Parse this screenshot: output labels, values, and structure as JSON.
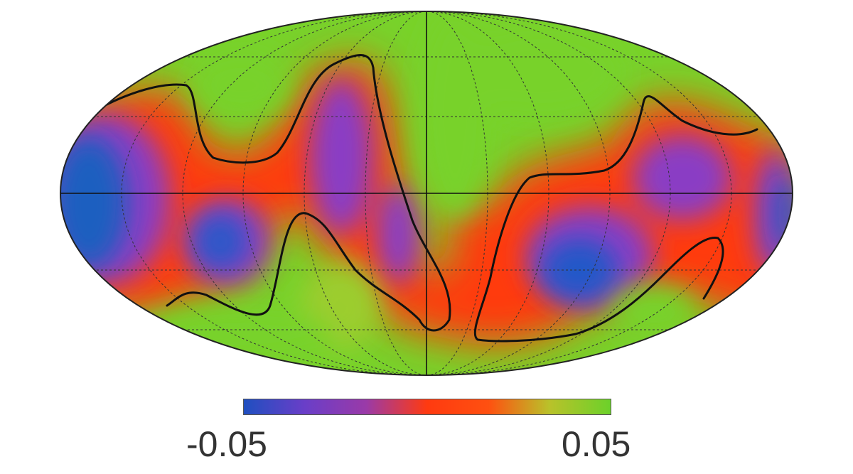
{
  "map": {
    "projection": "mollweide",
    "palette": [
      "#1f5fc0",
      "#8a3cc4",
      "#ff3a10",
      "#7ed321"
    ],
    "contour_color": "#000000"
  },
  "colorbar": {
    "min_label": "-0.05",
    "max_label": "0.05",
    "stops": [
      "#1f4fc0",
      "#6a3ec8",
      "#9a3aa8",
      "#ff3a10",
      "#ff5010",
      "#b9c22a",
      "#6cd12a"
    ]
  }
}
